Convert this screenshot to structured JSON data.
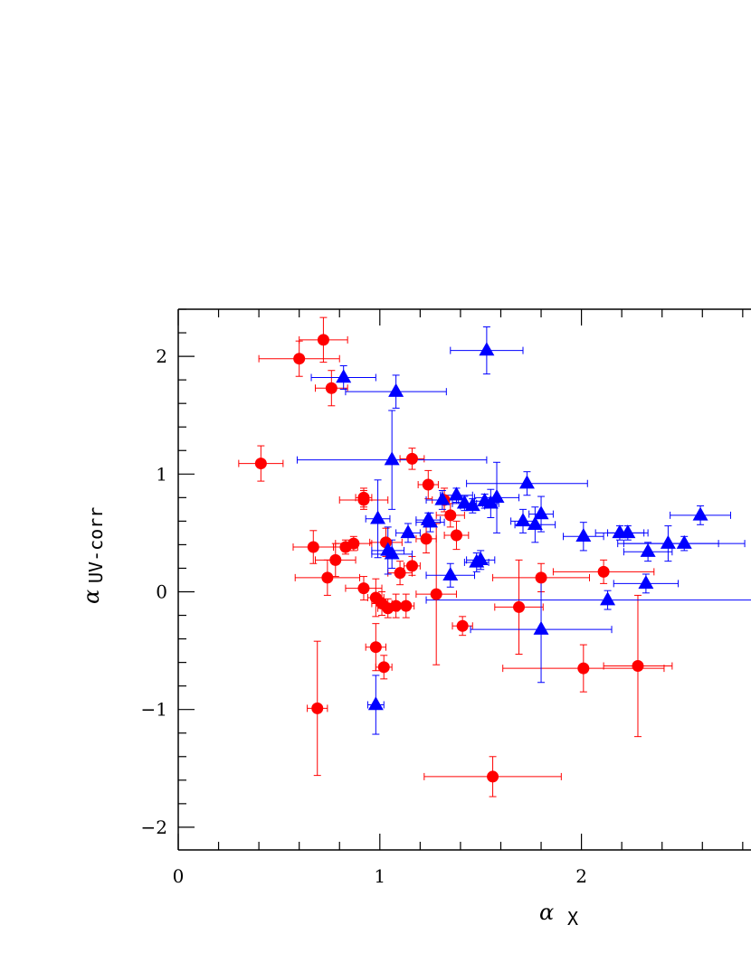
{
  "chart_data": {
    "type": "scatter",
    "xlabel": {
      "symbol": "α",
      "subscript": "X"
    },
    "ylabel": {
      "symbol": "α",
      "subscript": "UV-corr"
    },
    "xlim": [
      0,
      2.85
    ],
    "ylim": [
      -2.2,
      2.4
    ],
    "x_ticks": [
      {
        "value": 0,
        "label": "0"
      },
      {
        "value": 1,
        "label": "1"
      },
      {
        "value": 2,
        "label": "2"
      }
    ],
    "y_ticks": [
      {
        "value": 2,
        "label": "2"
      },
      {
        "value": 1,
        "label": "1"
      },
      {
        "value": 0,
        "label": "0"
      },
      {
        "value": -1,
        "label": "−1"
      },
      {
        "value": -2,
        "label": "−2"
      }
    ],
    "x_minor_step": 0.2,
    "y_minor_step": 0.2,
    "grid": false,
    "series": [
      {
        "marker": "circle",
        "color": "#ff0000",
        "points": [
          {
            "x": 0.41,
            "y": 1.09,
            "xerr": 0.11,
            "yerr": 0.15
          },
          {
            "x": 0.6,
            "y": 1.98,
            "xerr": 0.2,
            "yerr": 0.15
          },
          {
            "x": 0.72,
            "y": 2.14,
            "xerr": 0.12,
            "yerr": 0.19
          },
          {
            "x": 0.76,
            "y": 1.73,
            "xerr": 0.08,
            "yerr": 0.15
          },
          {
            "x": 0.67,
            "y": 0.38,
            "xerr": 0.1,
            "yerr": 0.14
          },
          {
            "x": 0.74,
            "y": 0.12,
            "xerr": 0.16,
            "yerr": 0.15
          },
          {
            "x": 0.78,
            "y": 0.27,
            "xerr": 0.1,
            "yerr": 0.14
          },
          {
            "x": 0.83,
            "y": 0.38,
            "xerr": 0.06,
            "yerr": 0.06
          },
          {
            "x": 0.87,
            "y": 0.41,
            "xerr": 0.09,
            "yerr": 0.06
          },
          {
            "x": 0.92,
            "y": 0.78,
            "xerr": 0.12,
            "yerr": 0.08
          },
          {
            "x": 0.92,
            "y": 0.8,
            "xerr": 0.04,
            "yerr": 0.08
          },
          {
            "x": 0.92,
            "y": 0.03,
            "xerr": 0.09,
            "yerr": 0.1
          },
          {
            "x": 0.98,
            "y": -0.05,
            "xerr": 0.04,
            "yerr": 0.16
          },
          {
            "x": 1.01,
            "y": -0.1,
            "xerr": 0.05,
            "yerr": 0.1
          },
          {
            "x": 1.04,
            "y": -0.14,
            "xerr": 0.05,
            "yerr": 0.08
          },
          {
            "x": 1.08,
            "y": -0.12,
            "xerr": 0.04,
            "yerr": 0.1
          },
          {
            "x": 1.03,
            "y": 0.42,
            "xerr": 0.08,
            "yerr": 0.12
          },
          {
            "x": 1.1,
            "y": 0.16,
            "xerr": 0.06,
            "yerr": 0.1
          },
          {
            "x": 1.16,
            "y": 0.22,
            "xerr": 0.04,
            "yerr": 0.08
          },
          {
            "x": 1.13,
            "y": -0.12,
            "xerr": 0.04,
            "yerr": 0.1
          },
          {
            "x": 0.98,
            "y": -0.47,
            "xerr": 0.05,
            "yerr": 0.2
          },
          {
            "x": 1.02,
            "y": -0.64,
            "xerr": 0.04,
            "yerr": 0.1
          },
          {
            "x": 0.69,
            "y": -0.99,
            "xerr": 0.05,
            "yerr": 0.57
          },
          {
            "x": 1.16,
            "y": 1.13,
            "xerr": 0.06,
            "yerr": 0.09
          },
          {
            "x": 1.24,
            "y": 0.91,
            "xerr": 0.05,
            "yerr": 0.12
          },
          {
            "x": 1.32,
            "y": 0.78,
            "xerr": 0.06,
            "yerr": 0.1
          },
          {
            "x": 1.35,
            "y": 0.65,
            "xerr": 0.07,
            "yerr": 0.1
          },
          {
            "x": 1.38,
            "y": 0.48,
            "xerr": 0.06,
            "yerr": 0.12
          },
          {
            "x": 1.23,
            "y": 0.45,
            "xerr": 0.05,
            "yerr": 0.12
          },
          {
            "x": 1.28,
            "y": -0.02,
            "xerr": 0.1,
            "yerr": 0.6
          },
          {
            "x": 1.41,
            "y": -0.29,
            "xerr": 0.05,
            "yerr": 0.08
          },
          {
            "x": 1.56,
            "y": -1.57,
            "xerr": 0.34,
            "yerr": 0.17
          },
          {
            "x": 1.69,
            "y": -0.13,
            "xerr": 0.12,
            "yerr": 0.4
          },
          {
            "x": 1.8,
            "y": 0.12,
            "xerr": 0.24,
            "yerr": 0.12
          },
          {
            "x": 2.01,
            "y": -0.65,
            "xerr": 0.4,
            "yerr": 0.2
          },
          {
            "x": 2.11,
            "y": 0.17,
            "xerr": 0.25,
            "yerr": 0.1
          },
          {
            "x": 2.28,
            "y": -0.63,
            "xerr": 0.17,
            "yerr": 0.6
          }
        ]
      },
      {
        "marker": "triangle",
        "color": "#0000ff",
        "points": [
          {
            "x": 0.82,
            "y": 1.82,
            "xerr": 0.16,
            "yerr": 0.1
          },
          {
            "x": 1.08,
            "y": 1.7,
            "xerr": 0.25,
            "yerr": 0.14
          },
          {
            "x": 1.53,
            "y": 2.05,
            "xerr": 0.18,
            "yerr": 0.2
          },
          {
            "x": 1.06,
            "y": 1.12,
            "xerr": 0.47,
            "yerr": 0.42
          },
          {
            "x": 0.99,
            "y": 0.62,
            "xerr": 0.06,
            "yerr": 0.33
          },
          {
            "x": 1.04,
            "y": 0.35,
            "xerr": 0.08,
            "yerr": 0.2
          },
          {
            "x": 1.06,
            "y": 0.32,
            "xerr": 0.1,
            "yerr": 0.12
          },
          {
            "x": 1.14,
            "y": 0.5,
            "xerr": 0.06,
            "yerr": 0.08
          },
          {
            "x": 1.24,
            "y": 0.61,
            "xerr": 0.06,
            "yerr": 0.06
          },
          {
            "x": 1.25,
            "y": 0.59,
            "xerr": 0.07,
            "yerr": 0.08
          },
          {
            "x": 1.31,
            "y": 0.78,
            "xerr": 0.08,
            "yerr": 0.08
          },
          {
            "x": 1.38,
            "y": 0.82,
            "xerr": 0.08,
            "yerr": 0.06
          },
          {
            "x": 1.42,
            "y": 0.75,
            "xerr": 0.06,
            "yerr": 0.06
          },
          {
            "x": 1.46,
            "y": 0.73,
            "xerr": 0.06,
            "yerr": 0.06
          },
          {
            "x": 1.52,
            "y": 0.77,
            "xerr": 0.06,
            "yerr": 0.06
          },
          {
            "x": 1.55,
            "y": 0.75,
            "xerr": 0.04,
            "yerr": 0.12
          },
          {
            "x": 1.58,
            "y": 0.8,
            "xerr": 0.11,
            "yerr": 0.3
          },
          {
            "x": 1.73,
            "y": 0.92,
            "xerr": 0.3,
            "yerr": 0.1
          },
          {
            "x": 1.71,
            "y": 0.6,
            "xerr": 0.06,
            "yerr": 0.1
          },
          {
            "x": 1.77,
            "y": 0.57,
            "xerr": 0.1,
            "yerr": 0.15
          },
          {
            "x": 1.8,
            "y": 0.66,
            "xerr": 0.06,
            "yerr": 0.15
          },
          {
            "x": 1.48,
            "y": 0.25,
            "xerr": 0.06,
            "yerr": 0.08
          },
          {
            "x": 1.5,
            "y": 0.27,
            "xerr": 0.07,
            "yerr": 0.08
          },
          {
            "x": 1.35,
            "y": 0.14,
            "xerr": 0.12,
            "yerr": 0.1
          },
          {
            "x": 2.01,
            "y": 0.47,
            "xerr": 0.1,
            "yerr": 0.12
          },
          {
            "x": 2.19,
            "y": 0.5,
            "xerr": 0.12,
            "yerr": 0.06
          },
          {
            "x": 2.23,
            "y": 0.5,
            "xerr": 0.1,
            "yerr": 0.06
          },
          {
            "x": 2.33,
            "y": 0.34,
            "xerr": 0.12,
            "yerr": 0.08
          },
          {
            "x": 2.43,
            "y": 0.41,
            "xerr": 0.25,
            "yerr": 0.15
          },
          {
            "x": 2.51,
            "y": 0.41,
            "xerr": 0.3,
            "yerr": 0.06
          },
          {
            "x": 2.59,
            "y": 0.65,
            "xerr": 0.15,
            "yerr": 0.08
          },
          {
            "x": 2.32,
            "y": 0.07,
            "xerr": 0.16,
            "yerr": 0.08
          },
          {
            "x": 2.13,
            "y": -0.07,
            "xerr": 0.9,
            "yerr": 0.08
          },
          {
            "x": 1.8,
            "y": -0.32,
            "xerr": 0.35,
            "yerr": 0.45
          },
          {
            "x": 0.98,
            "y": -0.96,
            "xerr": 0.04,
            "yerr": 0.25
          }
        ]
      }
    ]
  }
}
